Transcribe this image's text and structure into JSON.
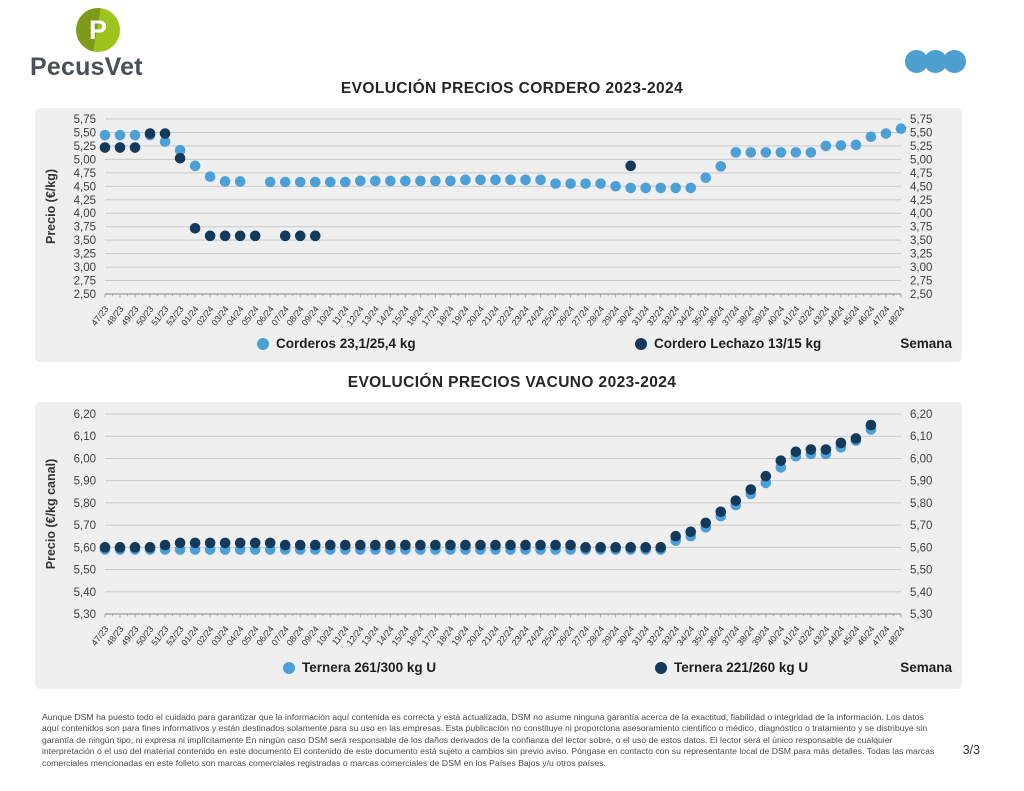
{
  "header": {
    "logo_text": "PecusVet",
    "logo_letter": "P"
  },
  "colors": {
    "accent_blue": "#4D9FD0",
    "light_blue": "#4DA0D7",
    "dark_navy": "#13395B",
    "panel_bg": "#EFEFEF",
    "gridline": "#C9C9C9",
    "axis_line": "#9B9B9B",
    "axis_text": "#3C3C3C",
    "logo_dark_green": "#7E9A1B",
    "logo_light_green": "#9DC41D"
  },
  "chart_data": [
    {
      "type": "scatter",
      "title": "EVOLUCIÓN PRECIOS CORDERO 2023-2024",
      "ylabel": "Precio (€/kg)",
      "xlabel": "Semana",
      "ylim": [
        2.5,
        5.75
      ],
      "ystep": 0.25,
      "grid": true,
      "legend_position": "bottom",
      "categories": [
        "47/23",
        "48/23",
        "49/23",
        "50/23",
        "51/23",
        "52/23",
        "01/24",
        "02/24",
        "03/24",
        "04/24",
        "05/24",
        "06/24",
        "07/24",
        "08/24",
        "09/24",
        "10/24",
        "11/24",
        "12/24",
        "13/24",
        "14/24",
        "15/24",
        "16/24",
        "17/24",
        "18/24",
        "19/24",
        "20/24",
        "21/24",
        "22/24",
        "23/24",
        "24/24",
        "25/24",
        "26/24",
        "27/24",
        "28/24",
        "29/24",
        "30/24",
        "31/24",
        "32/24",
        "33/24",
        "34/24",
        "35/24",
        "36/24",
        "37/24",
        "38/24",
        "39/24",
        "40/24",
        "41/24",
        "42/24",
        "43/24",
        "44/24",
        "45/24",
        "46/24",
        "47/24",
        "48/24"
      ],
      "series": [
        {
          "name": "Corderos 23,1/25,4 kg",
          "color": "#4DA0D7",
          "values": [
            5.45,
            5.45,
            5.45,
            5.45,
            5.33,
            5.17,
            4.88,
            4.68,
            4.59,
            4.59,
            null,
            4.58,
            4.58,
            4.58,
            4.58,
            4.58,
            4.58,
            4.6,
            4.6,
            4.6,
            4.6,
            4.6,
            4.6,
            4.6,
            4.62,
            4.62,
            4.62,
            4.62,
            4.62,
            4.62,
            4.55,
            4.55,
            4.55,
            4.55,
            4.5,
            4.47,
            4.47,
            4.47,
            4.47,
            4.47,
            4.66,
            4.87,
            5.13,
            5.13,
            5.13,
            5.13,
            5.13,
            5.13,
            5.25,
            5.26,
            5.27,
            5.42,
            5.48,
            5.57
          ]
        },
        {
          "name": "Cordero Lechazo 13/15 kg",
          "color": "#13395B",
          "values": [
            5.22,
            5.22,
            5.22,
            5.48,
            5.48,
            5.02,
            3.72,
            3.58,
            3.58,
            3.58,
            3.58,
            null,
            3.58,
            3.58,
            3.58,
            null,
            null,
            null,
            null,
            null,
            null,
            null,
            null,
            null,
            null,
            null,
            null,
            null,
            null,
            null,
            null,
            null,
            null,
            null,
            null,
            4.88,
            null,
            null,
            null,
            null,
            null,
            null,
            null,
            null,
            null,
            null,
            null,
            null,
            null,
            null,
            null,
            null,
            null,
            null
          ]
        }
      ]
    },
    {
      "type": "scatter",
      "title": "EVOLUCIÓN PRECIOS VACUNO 2023-2024",
      "ylabel": "Precio (€/kg canal)",
      "xlabel": "Semana",
      "ylim": [
        5.3,
        6.2
      ],
      "ystep": 0.1,
      "grid": true,
      "legend_position": "bottom",
      "categories": [
        "47/23",
        "48/23",
        "49/23",
        "50/23",
        "51/23",
        "52/23",
        "01/24",
        "02/24",
        "03/24",
        "04/24",
        "05/24",
        "06/24",
        "07/24",
        "08/24",
        "09/24",
        "10/24",
        "11/24",
        "12/24",
        "13/24",
        "14/24",
        "15/24",
        "16/24",
        "17/24",
        "18/24",
        "19/24",
        "20/24",
        "21/24",
        "22/24",
        "23/24",
        "24/24",
        "25/24",
        "26/24",
        "27/24",
        "28/24",
        "29/24",
        "30/24",
        "31/24",
        "32/24",
        "33/24",
        "34/24",
        "35/24",
        "36/24",
        "37/24",
        "38/24",
        "39/24",
        "40/24",
        "41/24",
        "42/24",
        "43/24",
        "44/24",
        "45/24",
        "46/24",
        "47/24",
        "48/24"
      ],
      "series": [
        {
          "name": "Ternera 261/300 kg U",
          "color": "#4DA0D7",
          "values": [
            5.59,
            5.59,
            5.59,
            5.59,
            5.59,
            5.59,
            5.59,
            5.59,
            5.59,
            5.59,
            5.59,
            5.59,
            5.59,
            5.59,
            5.59,
            5.59,
            5.59,
            5.59,
            5.59,
            5.59,
            5.59,
            5.59,
            5.59,
            5.59,
            5.59,
            5.59,
            5.59,
            5.59,
            5.59,
            5.59,
            5.59,
            5.59,
            5.59,
            5.59,
            5.59,
            5.59,
            5.59,
            5.59,
            5.63,
            5.65,
            5.69,
            5.74,
            5.79,
            5.84,
            5.89,
            5.96,
            6.01,
            6.02,
            6.02,
            6.05,
            6.08,
            6.13,
            null,
            null
          ]
        },
        {
          "name": "Ternera 221/260 kg U",
          "color": "#13395B",
          "values": [
            5.6,
            5.6,
            5.6,
            5.6,
            5.61,
            5.62,
            5.62,
            5.62,
            5.62,
            5.62,
            5.62,
            5.62,
            5.61,
            5.61,
            5.61,
            5.61,
            5.61,
            5.61,
            5.61,
            5.61,
            5.61,
            5.61,
            5.61,
            5.61,
            5.61,
            5.61,
            5.61,
            5.61,
            5.61,
            5.61,
            5.61,
            5.61,
            5.6,
            5.6,
            5.6,
            5.6,
            5.6,
            5.6,
            5.65,
            5.67,
            5.71,
            5.76,
            5.81,
            5.86,
            5.92,
            5.99,
            6.03,
            6.04,
            6.04,
            6.07,
            6.09,
            6.15,
            null,
            null
          ]
        }
      ]
    }
  ],
  "footer": {
    "disclaimer": "Aunque DSM ha puesto todo el cuidado para garantizar que la información aquí contenida es correcta y está actualizada, DSM no asume ninguna garantía acerca de la exactitud, fiabilidad o integridad de la información. Los datos aquí contenidos son para fines informativos y están destinados solamente para su uso en las empresas. Esta publicación no constituye ni proporciona asesoramiento científico o médico, diagnóstico o tratamiento y se distribuye sin garantía de ningún tipo, ni expresa ni implícitamente En ningún caso DSM será responsable de los daños derivados de la confianza del lector sobre, o el uso de estos datos. El lector será el único responsable de cualquier interpretación o el uso del material contenido en este documento El contenido de este documento está sujeto a cambios sin previo aviso. Póngase en contacto con su representante local de DSM para más detalles. Todas las marcas comerciales mencionadas en este folleto son marcas comerciales registradas o marcas comerciales de DSM en los Países Bajos y/u otros países.",
    "page": "3/3"
  }
}
